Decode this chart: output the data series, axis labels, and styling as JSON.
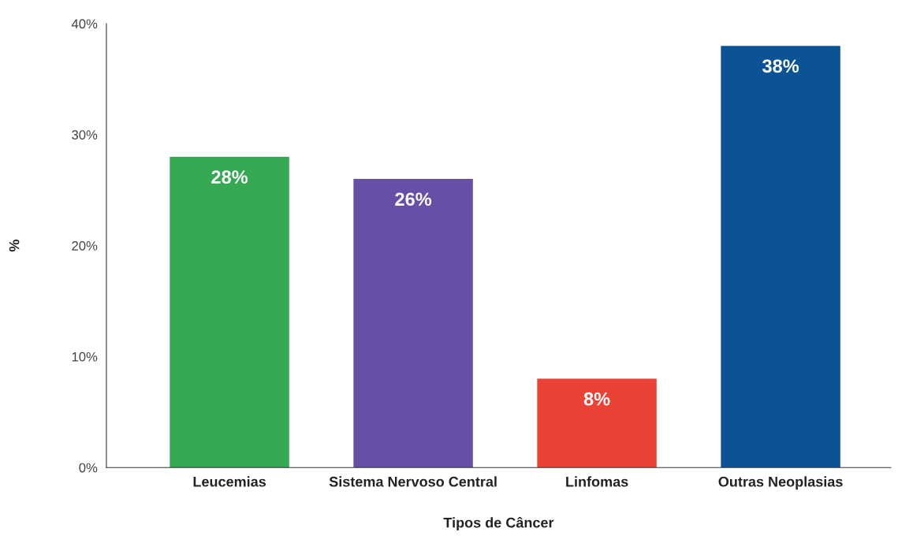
{
  "chart_data": {
    "type": "bar",
    "xlabel": "Tipos de Câncer",
    "ylabel": "%",
    "categories": [
      "Leucemias",
      "Sistema Nervoso Central",
      "Linfomas",
      "Outras Neoplasias"
    ],
    "values": [
      28,
      26,
      8,
      38
    ],
    "colors": [
      "#34a853",
      "#674ea7",
      "#ea4335",
      "#0b5394"
    ],
    "value_labels": [
      "28%",
      "26%",
      "8%",
      "38%"
    ],
    "ylim": [
      0,
      40
    ],
    "yticks": [
      {
        "value": 0,
        "label": "0%"
      },
      {
        "value": 10,
        "label": "10%"
      },
      {
        "value": 20,
        "label": "20%"
      },
      {
        "value": 30,
        "label": "30%"
      },
      {
        "value": 40,
        "label": "40%"
      }
    ],
    "grid": false
  }
}
